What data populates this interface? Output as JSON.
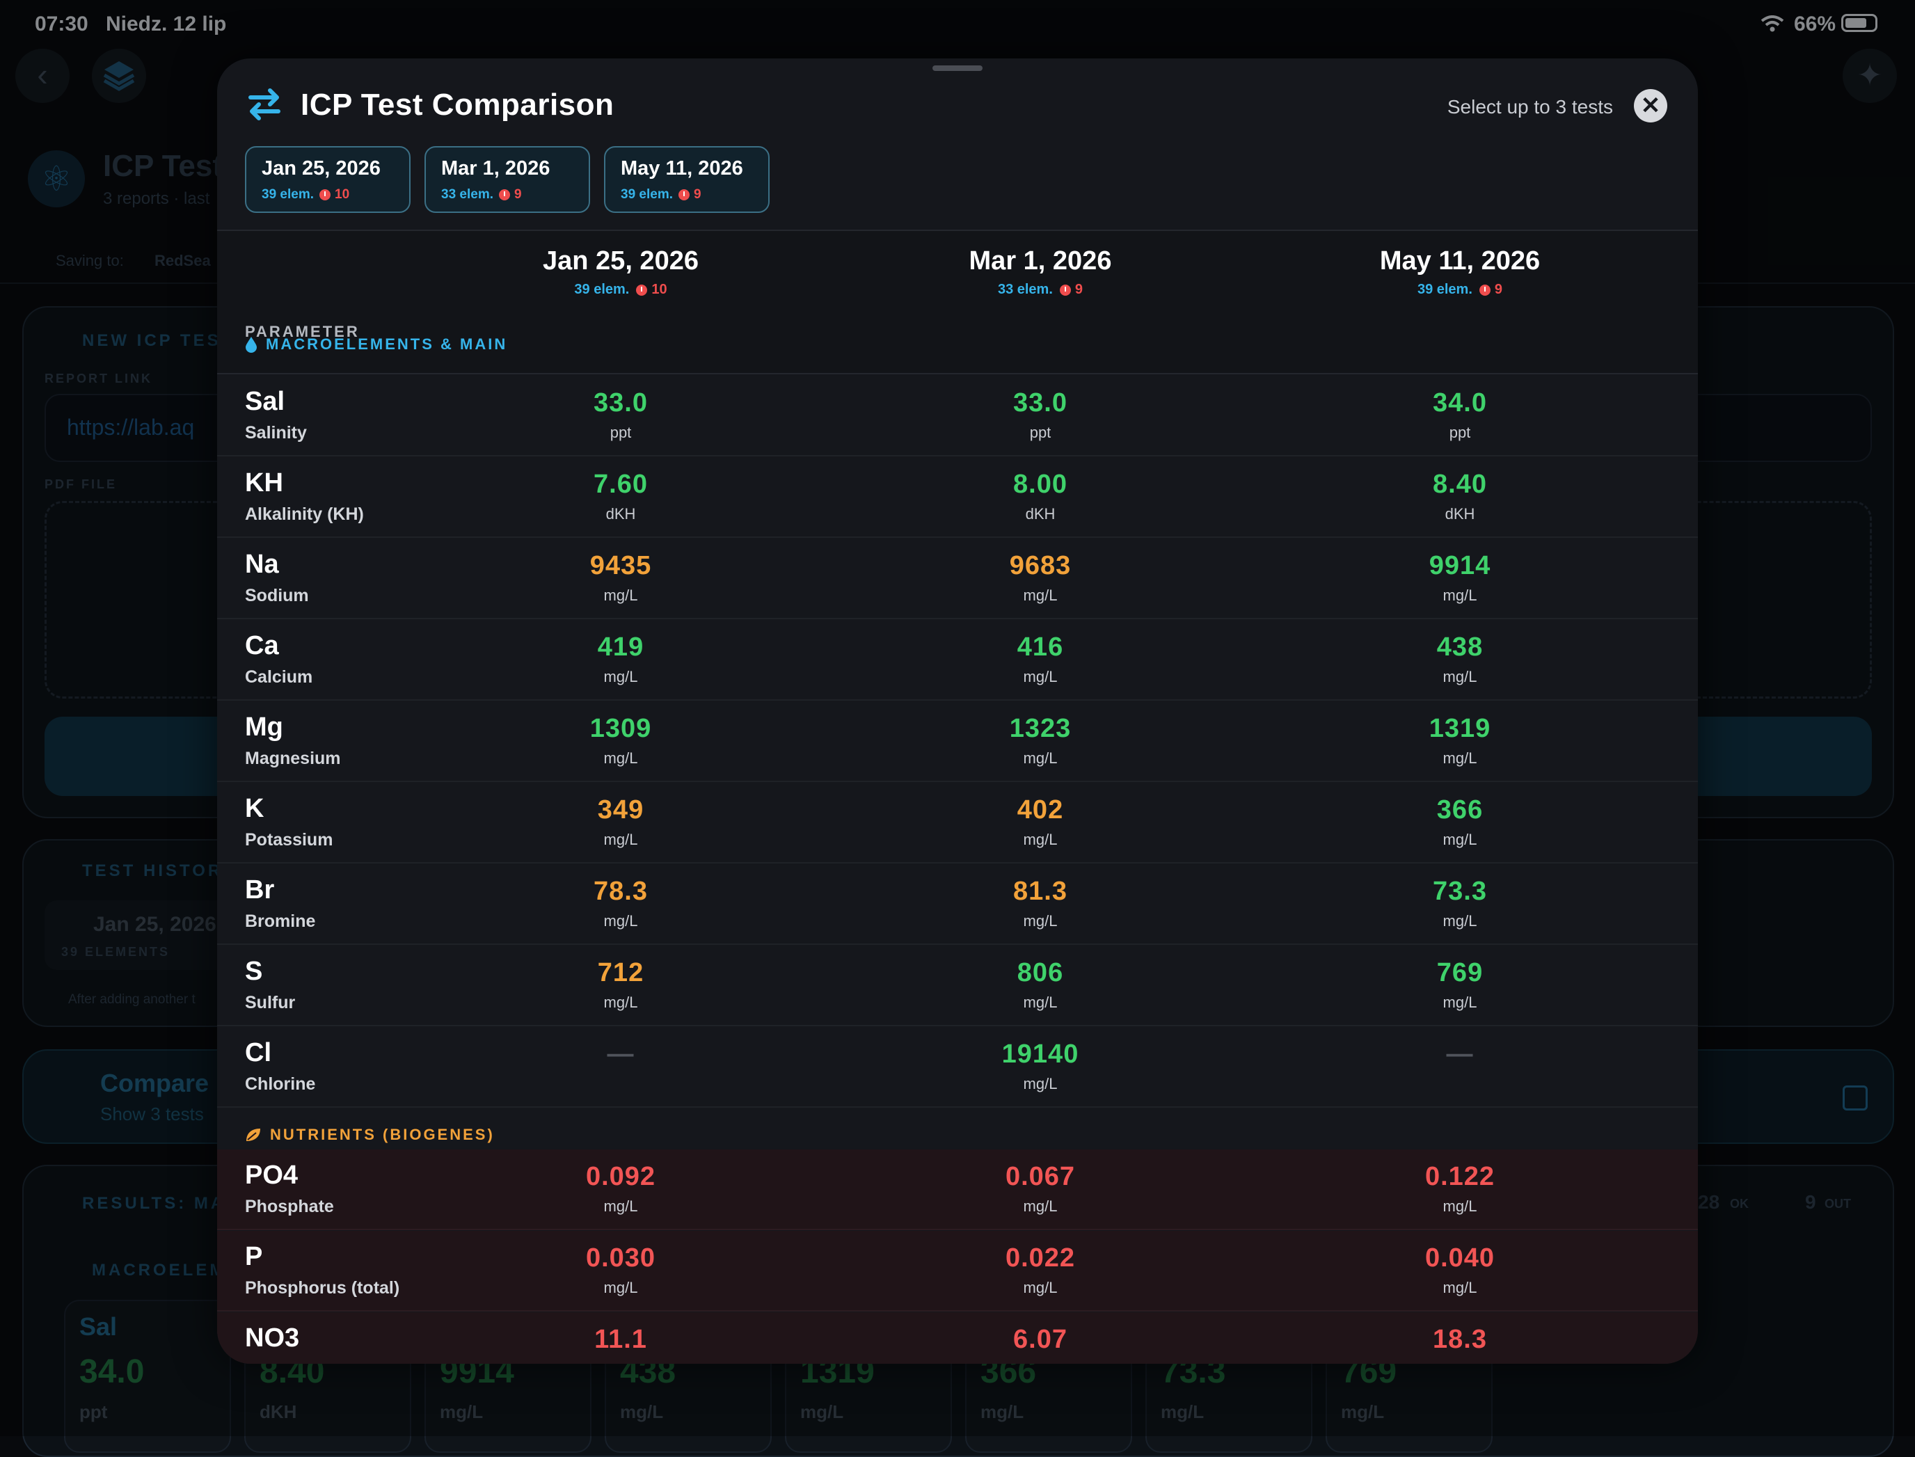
{
  "status_bar": {
    "time": "07:30",
    "date": "Niedz. 12 lip",
    "battery": "66%"
  },
  "background": {
    "page_title": "ICP Test",
    "page_sub": "3 reports · last",
    "saving_label": "Saving to:",
    "saving_target": "RedSea",
    "new_test": "NEW ICP TES",
    "report_link": "REPORT LINK",
    "link_value": "https://lab.aq",
    "pdf_file": "PDF FILE",
    "history": "TEST HISTOR",
    "history_item": "Jan 25, 2026",
    "history_item_sub": "39 ELEMENTS",
    "history_note": "After adding another t",
    "compare_title": "Compare",
    "compare_sub": "Show 3 tests",
    "results": "RESULTS: MA",
    "ok_count": "28",
    "ok_label": "OK",
    "out_count": "9",
    "out_label": "OUT",
    "macro": "MACROELEM",
    "tiles": [
      {
        "sym": "Sal",
        "val": "34.0",
        "unit": "ppt"
      },
      {
        "sym": "",
        "val": "8.40",
        "unit": "dKH"
      },
      {
        "sym": "",
        "val": "9914",
        "unit": "mg/L"
      },
      {
        "sym": "",
        "val": "438",
        "unit": "mg/L"
      },
      {
        "sym": "",
        "val": "1319",
        "unit": "mg/L"
      },
      {
        "sym": "",
        "val": "366",
        "unit": "mg/L"
      },
      {
        "sym": "",
        "val": "73.3",
        "unit": "mg/L"
      },
      {
        "sym": "",
        "val": "769",
        "unit": "mg/L"
      }
    ]
  },
  "sheet": {
    "title": "ICP Test Comparison",
    "hint": "Select up to 3 tests",
    "close_label": "✕",
    "chips": [
      {
        "date": "Jan 25, 2026",
        "elem": "39 elem.",
        "bad": "10"
      },
      {
        "date": "Mar 1, 2026",
        "elem": "33 elem.",
        "bad": "9"
      },
      {
        "date": "May 11, 2026",
        "elem": "39 elem.",
        "bad": "9"
      }
    ],
    "param_label": "PARAMETER",
    "columns": [
      {
        "date": "Jan 25, 2026",
        "elem": "39 elem.",
        "bad": "10"
      },
      {
        "date": "Mar 1, 2026",
        "elem": "33 elem.",
        "bad": "9"
      },
      {
        "date": "May 11, 2026",
        "elem": "39 elem.",
        "bad": "9"
      }
    ],
    "sections": {
      "macro": "MACROELEMENTS & MAIN",
      "nutrients": "NUTRIENTS (BIOGENES)"
    },
    "rows": [
      {
        "sym": "Sal",
        "name": "Salinity",
        "vals": [
          [
            "33.0",
            "ppt",
            "green"
          ],
          [
            "33.0",
            "ppt",
            "green"
          ],
          [
            "34.0",
            "ppt",
            "green"
          ]
        ]
      },
      {
        "sym": "KH",
        "name": "Alkalinity (KH)",
        "vals": [
          [
            "7.60",
            "dKH",
            "green"
          ],
          [
            "8.00",
            "dKH",
            "green"
          ],
          [
            "8.40",
            "dKH",
            "green"
          ]
        ]
      },
      {
        "sym": "Na",
        "name": "Sodium",
        "vals": [
          [
            "9435",
            "mg/L",
            "orange"
          ],
          [
            "9683",
            "mg/L",
            "orange"
          ],
          [
            "9914",
            "mg/L",
            "green"
          ]
        ]
      },
      {
        "sym": "Ca",
        "name": "Calcium",
        "vals": [
          [
            "419",
            "mg/L",
            "green"
          ],
          [
            "416",
            "mg/L",
            "green"
          ],
          [
            "438",
            "mg/L",
            "green"
          ]
        ]
      },
      {
        "sym": "Mg",
        "name": "Magnesium",
        "vals": [
          [
            "1309",
            "mg/L",
            "green"
          ],
          [
            "1323",
            "mg/L",
            "green"
          ],
          [
            "1319",
            "mg/L",
            "green"
          ]
        ]
      },
      {
        "sym": "K",
        "name": "Potassium",
        "vals": [
          [
            "349",
            "mg/L",
            "orange"
          ],
          [
            "402",
            "mg/L",
            "orange"
          ],
          [
            "366",
            "mg/L",
            "green"
          ]
        ]
      },
      {
        "sym": "Br",
        "name": "Bromine",
        "vals": [
          [
            "78.3",
            "mg/L",
            "orange"
          ],
          [
            "81.3",
            "mg/L",
            "orange"
          ],
          [
            "73.3",
            "mg/L",
            "green"
          ]
        ]
      },
      {
        "sym": "S",
        "name": "Sulfur",
        "vals": [
          [
            "712",
            "mg/L",
            "orange"
          ],
          [
            "806",
            "mg/L",
            "green"
          ],
          [
            "769",
            "mg/L",
            "green"
          ]
        ]
      },
      {
        "sym": "Cl",
        "name": "Chlorine",
        "vals": [
          [
            "—",
            "",
            "dash"
          ],
          [
            "19140",
            "mg/L",
            "green"
          ],
          [
            "—",
            "",
            "dash"
          ]
        ]
      }
    ],
    "nutrient_rows": [
      {
        "sym": "PO4",
        "name": "Phosphate",
        "vals": [
          [
            "0.092",
            "mg/L",
            "red"
          ],
          [
            "0.067",
            "mg/L",
            "red"
          ],
          [
            "0.122",
            "mg/L",
            "red"
          ]
        ]
      },
      {
        "sym": "P",
        "name": "Phosphorus (total)",
        "vals": [
          [
            "0.030",
            "mg/L",
            "red"
          ],
          [
            "0.022",
            "mg/L",
            "red"
          ],
          [
            "0.040",
            "mg/L",
            "red"
          ]
        ]
      },
      {
        "sym": "NO3",
        "name": "",
        "vals": [
          [
            "11.1",
            "",
            "red"
          ],
          [
            "6.07",
            "",
            "red"
          ],
          [
            "18.3",
            "",
            "red"
          ]
        ]
      }
    ]
  }
}
